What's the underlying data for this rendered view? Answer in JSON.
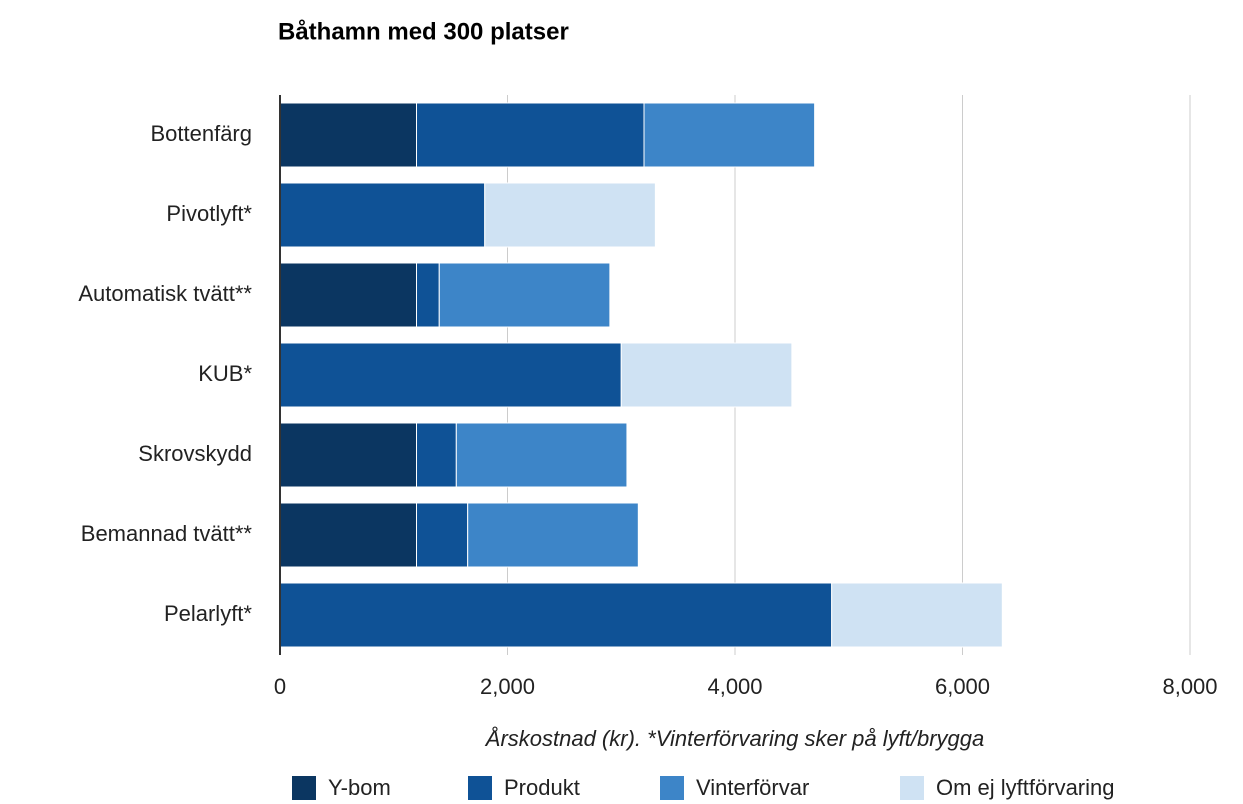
{
  "chart_data": {
    "type": "stacked_barh",
    "title": "Båthamn med 300 platser",
    "x_label": "Årskostnad (kr). *Vinterförvaring sker på lyft/brygga",
    "categories": [
      "Bottenfärg",
      "Pivotlyft*",
      "Automatisk tvätt**",
      "KUB*",
      "Skrovskydd",
      "Bemannad tvätt**",
      "Pelarlyft*"
    ],
    "series": [
      {
        "name": "Y-bom",
        "color": "#0b3661",
        "values": [
          1200,
          null,
          1200,
          null,
          1200,
          1200,
          null
        ]
      },
      {
        "name": "Produkt",
        "color": "#0f5296",
        "values": [
          2000,
          1800,
          200,
          3000,
          350,
          450,
          4850
        ]
      },
      {
        "name": "Vinterförvar",
        "color": "#3d85c8",
        "values": [
          1500,
          null,
          1500,
          null,
          1500,
          1500,
          null
        ]
      },
      {
        "name": "Om ej lyftförvaring",
        "color": "#cfe2f3",
        "values": [
          null,
          1500,
          null,
          1500,
          null,
          null,
          1500
        ]
      }
    ],
    "xlim": [
      0,
      8000
    ],
    "xticks": [
      0,
      {
        "value": 2000,
        "label": "2,000"
      },
      {
        "value": 4000,
        "label": "4,000"
      },
      {
        "value": 6000,
        "label": "6,000"
      },
      {
        "value": 8000,
        "label": "8,000"
      }
    ],
    "grid": true,
    "legend": "bottom"
  }
}
